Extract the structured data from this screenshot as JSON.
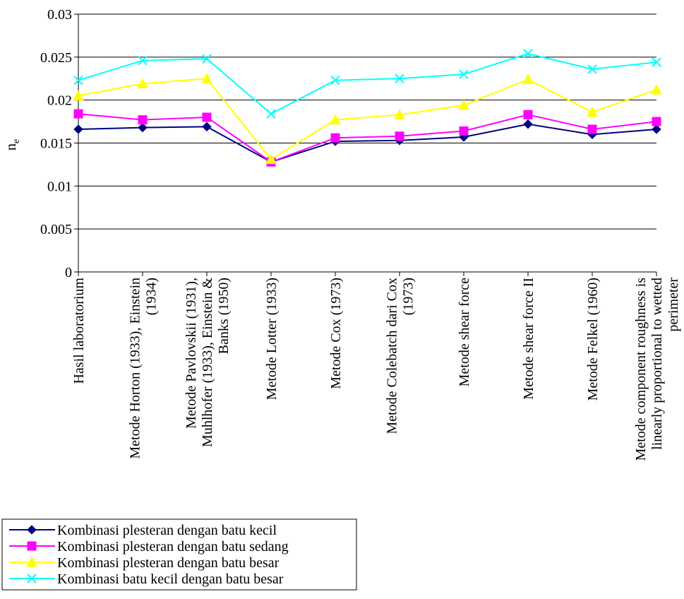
{
  "chart_data": {
    "type": "line",
    "title": "",
    "xlabel": "",
    "ylabel": "n",
    "ylabel_subscript": "e",
    "ylim": [
      0,
      0.03
    ],
    "yticks": [
      "0",
      "0.005",
      "0.01",
      "0.015",
      "0.02",
      "0.025",
      "0.03"
    ],
    "grid": "horizontal",
    "legend_position": "bottom-left",
    "categories": [
      [
        "Hasil laboratorium"
      ],
      [
        "Metode Horton (1933), Einstein",
        "(1934)"
      ],
      [
        "Metode Pavlovskii (1931),",
        "Muhlhofer (1933), Einstein &",
        "Banks (1950)"
      ],
      [
        "Metode Lotter (1933)"
      ],
      [
        "Metode Cox (1973)"
      ],
      [
        "Metode Colebatch dari Cox",
        "(1973)"
      ],
      [
        "Metode shear force"
      ],
      [
        "Metode shear force II"
      ],
      [
        "Metode Felkel (1960)"
      ],
      [
        "Metode component roughness is",
        "linearly proportional to wetted",
        "perimeter"
      ]
    ],
    "series": [
      {
        "name": "Kombinasi plesteran dengan batu kecil",
        "color": "#000080",
        "marker": "diamond",
        "values": [
          0.0166,
          0.0168,
          0.0169,
          0.0128,
          0.0152,
          0.0153,
          0.0157,
          0.0172,
          0.016,
          0.0166
        ]
      },
      {
        "name": "Kombinasi plesteran dengan batu sedang",
        "color": "#ff00ff",
        "marker": "square",
        "values": [
          0.0184,
          0.0177,
          0.018,
          0.0128,
          0.0156,
          0.0158,
          0.0164,
          0.0183,
          0.0166,
          0.0175
        ]
      },
      {
        "name": "Kombinasi plesteran dengan batu besar",
        "color": "#ffff00",
        "marker": "triangle",
        "values": [
          0.0205,
          0.0219,
          0.0225,
          0.0131,
          0.0177,
          0.0183,
          0.0194,
          0.0224,
          0.0186,
          0.0212
        ]
      },
      {
        "name": "Kombinasi batu kecil dengan batu besar",
        "color": "#00ffff",
        "marker": "x",
        "values": [
          0.0223,
          0.0246,
          0.0248,
          0.0184,
          0.0223,
          0.0225,
          0.023,
          0.0254,
          0.0236,
          0.0244
        ]
      }
    ]
  }
}
